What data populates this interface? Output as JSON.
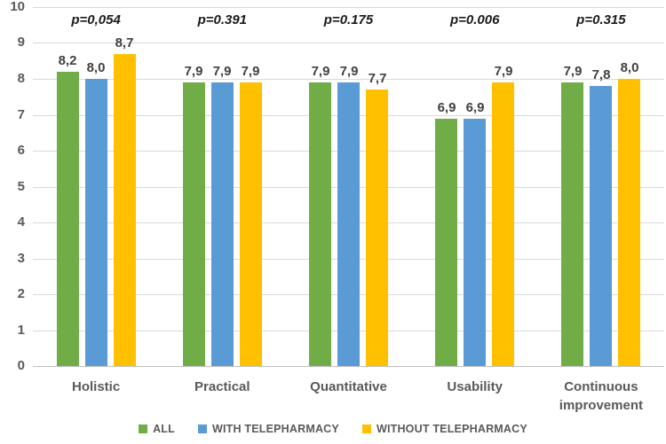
{
  "chart_data": {
    "type": "bar",
    "title": "",
    "xlabel": "",
    "ylabel": "",
    "ylim": [
      0,
      10
    ],
    "grid": true,
    "legend_position": "bottom",
    "y_ticks": [
      "0",
      "1",
      "2",
      "3",
      "4",
      "5",
      "6",
      "7",
      "8",
      "9",
      "10"
    ],
    "categories": [
      "Holistic",
      "Practical",
      "Quantitative",
      "Usability",
      "Continuous improvement"
    ],
    "series": [
      {
        "name": "ALL",
        "color": "#70AD47",
        "values": [
          8.2,
          7.9,
          7.9,
          6.9,
          7.9
        ]
      },
      {
        "name": "WITH TELEPHARMACY",
        "color": "#5B9BD5",
        "values": [
          8.0,
          7.9,
          7.9,
          6.9,
          7.8
        ]
      },
      {
        "name": "WITHOUT TELEPHARMACY",
        "color": "#FFC000",
        "values": [
          8.7,
          7.9,
          7.7,
          7.9,
          8.0
        ]
      }
    ],
    "value_labels": [
      [
        "8,2",
        "8,0",
        "8,7"
      ],
      [
        "7,9",
        "7,9",
        "7,9"
      ],
      [
        "7,9",
        "7,9",
        "7,7"
      ],
      [
        "6,9",
        "6,9",
        "7,9"
      ],
      [
        "7,9",
        "7,8",
        "8,0"
      ]
    ],
    "p_values": [
      "p=0,054",
      "p=0.391",
      "p=0.175",
      "p=0.006",
      "p=0.315"
    ],
    "legend": [
      "ALL",
      "WITH TELEPHARMACY",
      "WITHOUT TELEPHARMACY"
    ]
  }
}
